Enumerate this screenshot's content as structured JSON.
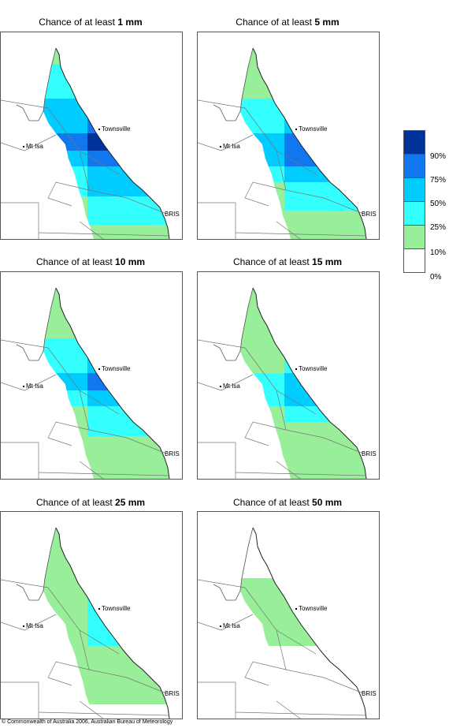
{
  "panels": [
    {
      "prefix": "Chance of at least ",
      "amount": "1 mm",
      "levels": [
        2,
        3,
        3,
        4,
        4,
        5,
        4,
        3,
        3,
        2,
        2,
        1
      ],
      "labels": {
        "townsville": "Townsville",
        "mtisa": "Mt Isa",
        "bris": "BRIS"
      }
    },
    {
      "prefix": "Chance of at least ",
      "amount": "5 mm",
      "levels": [
        2,
        2,
        2,
        3,
        3,
        4,
        4,
        3,
        2,
        2,
        1,
        1
      ],
      "labels": {
        "townsville": "Townsville",
        "mtisa": "Mt Isa",
        "bris": "BRIS"
      }
    },
    {
      "prefix": "Chance of at least ",
      "amount": "10 mm",
      "levels": [
        1,
        2,
        2,
        3,
        3,
        4,
        3,
        2,
        2,
        1,
        1,
        1
      ],
      "labels": {
        "townsville": "Townsville",
        "mtisa": "Mt Isa",
        "bris": "BRIS"
      }
    },
    {
      "prefix": "Chance of at least ",
      "amount": "15 mm",
      "levels": [
        1,
        1,
        2,
        2,
        2,
        3,
        3,
        2,
        1,
        1,
        1,
        1
      ],
      "labels": {
        "townsville": "Townsville",
        "mtisa": "Mt Isa",
        "bris": "BRIS"
      }
    },
    {
      "prefix": "Chance of at least ",
      "amount": "25 mm",
      "levels": [
        1,
        1,
        1,
        2,
        2,
        2,
        2,
        1,
        1,
        1,
        1,
        0
      ],
      "labels": {
        "townsville": "Townsville",
        "mtisa": "Mt Isa",
        "bris": "BRIS"
      }
    },
    {
      "prefix": "Chance of at least ",
      "amount": "50 mm",
      "levels": [
        0,
        0,
        0,
        1,
        1,
        1,
        1,
        0,
        0,
        0,
        0,
        0
      ],
      "labels": {
        "townsville": "Townsville",
        "mtisa": "Mt Isa",
        "bris": "BRIS"
      }
    }
  ],
  "legend": {
    "colors": [
      "#ffffff",
      "#99ee99",
      "#33ffff",
      "#00ccff",
      "#1177ee",
      "#003399"
    ],
    "labels": [
      "0%",
      "10%",
      "25%",
      "50%",
      "75%",
      "90%"
    ]
  },
  "footer": "© Commonwealth of Australia 2006, Australian Bureau of Meteorology"
}
